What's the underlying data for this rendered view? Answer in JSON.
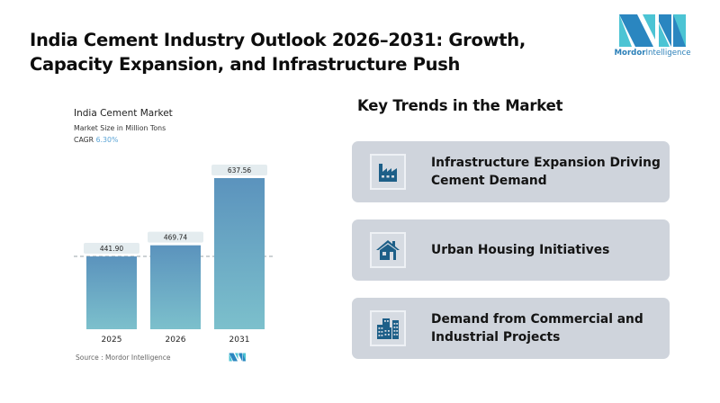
{
  "header": {
    "title": "India Cement Industry Outlook 2026–2031: Growth, Capacity Expansion, and Infrastructure Push",
    "logo": {
      "icon": "mordor-intelligence-logo",
      "brand_bold": "Mordor",
      "brand_light": "Intelligence"
    }
  },
  "chart_panel": {
    "title": "India Cement Market",
    "subtitle": "Market Size in Million Tons",
    "cagr_label": "CAGR",
    "cagr_value": "6.30%",
    "source": "Source :  Mordor Intelligence"
  },
  "chart_data": {
    "type": "bar",
    "title": "India Cement Market",
    "subtitle": "Market Size in Million Tons",
    "xlabel": "",
    "ylabel": "Market Size in Million Tons",
    "categories": [
      "2025",
      "2026",
      "2031"
    ],
    "values": [
      441.9,
      469.74,
      637.56
    ],
    "data_labels": [
      "441.90",
      "469.74",
      "637.56"
    ],
    "ylim": [
      0,
      700
    ],
    "reference_line": 441.9,
    "grid": false,
    "colors": {
      "bar_top": "#5b93bd",
      "bar_bottom": "#7cc0cc",
      "label_bg": "#e4ecef",
      "ref_line": "#9aa3a8"
    }
  },
  "trends": {
    "title": "Key Trends in the Market",
    "items": [
      {
        "label": "Infrastructure Expansion Driving Cement Demand",
        "icon": "factory-icon"
      },
      {
        "label": "Urban Housing Initiatives",
        "icon": "house-icon"
      },
      {
        "label": "Demand from Commercial and Industrial Projects",
        "icon": "buildings-icon"
      }
    ]
  },
  "colors": {
    "card_bg": "#cfd4dc",
    "icon": "#1d5f88",
    "brand_dark": "#2a7fb8",
    "brand_light": "#4cc4d4"
  }
}
